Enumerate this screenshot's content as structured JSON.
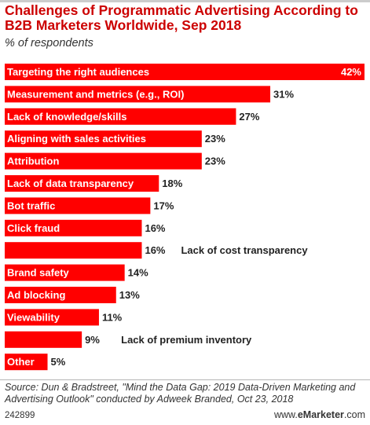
{
  "header": {
    "title": "Challenges of Programmatic Advertising According to B2B Marketers Worldwide, Sep 2018",
    "subtitle": "% of respondents"
  },
  "footer": {
    "source": "Source: Dun & Bradstreet, \"Mind the Data Gap: 2019 Data-Driven Marketing and Advertising Outlook\" conducted by Adweek Branded, Oct 23, 2018",
    "chart_id": "242899",
    "brand_site": "www.",
    "brand_name": "eMarketer",
    "brand_tld": ".com"
  },
  "colors": {
    "bar": "#ff0000",
    "title": "#cc0000"
  },
  "chart_data": {
    "type": "bar",
    "orientation": "horizontal",
    "title": "Challenges of Programmatic Advertising According to B2B Marketers Worldwide, Sep 2018",
    "subtitle": "% of respondents",
    "xlim": [
      0,
      42
    ],
    "unit": "%",
    "categories": [
      "Targeting the right audiences",
      "Measurement and metrics (e.g., ROI)",
      "Lack of knowledge/skills",
      "Aligning with sales activities",
      "Attribution",
      "Lack of data transparency",
      "Bot traffic",
      "Click fraud",
      "Lack of cost transparency",
      "Brand safety",
      "Ad blocking",
      "Viewability",
      "Lack of premium inventory",
      "Other"
    ],
    "values": [
      42,
      31,
      27,
      23,
      23,
      18,
      17,
      16,
      16,
      14,
      13,
      11,
      9,
      5
    ],
    "value_labels": [
      "42%",
      "31%",
      "27%",
      "23%",
      "23%",
      "18%",
      "17%",
      "16%",
      "16%",
      "14%",
      "13%",
      "11%",
      "9%",
      "5%"
    ],
    "label_outside": [
      false,
      false,
      false,
      false,
      false,
      false,
      false,
      false,
      true,
      false,
      false,
      false,
      true,
      false
    ]
  }
}
